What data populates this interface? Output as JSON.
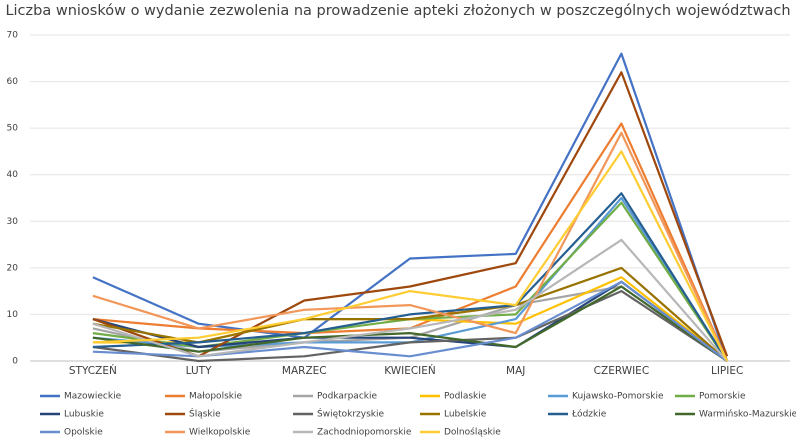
{
  "chart_data": {
    "type": "line",
    "title": "Liczba wniosków o wydanie zezwolenia na prowadzenie apteki złożonych w poszczególnych województwach",
    "categories": [
      "STYCZEŃ",
      "LUTY",
      "MARZEC",
      "KWIECIEŃ",
      "MAJ",
      "CZERWIEC",
      "LIPIEC"
    ],
    "ylim": [
      0,
      70
    ],
    "yticks": [
      0,
      10,
      20,
      30,
      40,
      50,
      60,
      70
    ],
    "grid": true,
    "series": [
      {
        "name": "Mazowieckie",
        "color": "#4472c4",
        "values": [
          18,
          8,
          5,
          22,
          23,
          66,
          0
        ]
      },
      {
        "name": "Małopolskie",
        "color": "#ed7d31",
        "values": [
          9,
          7,
          6,
          7,
          16,
          51,
          0
        ]
      },
      {
        "name": "Podkarpackie",
        "color": "#a5a5a5",
        "values": [
          7,
          2,
          4,
          5,
          12,
          16,
          0
        ]
      },
      {
        "name": "Podlaskie",
        "color": "#ffc000",
        "values": [
          4,
          4,
          9,
          9,
          8,
          18,
          0
        ]
      },
      {
        "name": "Kujawsko-Pomorskie",
        "color": "#5b9bd5",
        "values": [
          5,
          3,
          4,
          4,
          9,
          35,
          0
        ]
      },
      {
        "name": "Pomorskie",
        "color": "#70ad47",
        "values": [
          6,
          3,
          6,
          9,
          10,
          34,
          0
        ]
      },
      {
        "name": "Lubuskie",
        "color": "#264478",
        "values": [
          9,
          3,
          5,
          5,
          3,
          17,
          0
        ]
      },
      {
        "name": "Śląskie",
        "color": "#9e480e",
        "values": [
          9,
          1,
          13,
          16,
          21,
          62,
          1
        ]
      },
      {
        "name": "Świętokrzyskie",
        "color": "#636363",
        "values": [
          3,
          0,
          1,
          4,
          5,
          15,
          0
        ]
      },
      {
        "name": "Lubelskie",
        "color": "#997300",
        "values": [
          8,
          4,
          9,
          9,
          12,
          20,
          0
        ]
      },
      {
        "name": "Łódzkie",
        "color": "#255e91",
        "values": [
          3,
          4,
          6,
          10,
          12,
          36,
          0
        ]
      },
      {
        "name": "Warmińsko-Mazurskie",
        "color": "#43682b",
        "values": [
          5,
          2,
          5,
          6,
          3,
          16,
          0
        ]
      },
      {
        "name": "Opolskie",
        "color": "#698ed0",
        "values": [
          2,
          1,
          3,
          1,
          5,
          17,
          0
        ]
      },
      {
        "name": "Wielkopolskie",
        "color": "#f1975a",
        "values": [
          14,
          7,
          11,
          12,
          6,
          49,
          0
        ]
      },
      {
        "name": "Zachodniopomorskie",
        "color": "#b7b7b7",
        "values": [
          8,
          1,
          4,
          7,
          11,
          26,
          0
        ]
      },
      {
        "name": "Dolnośląskie",
        "color": "#ffcd33",
        "values": [
          4,
          5,
          9,
          15,
          12,
          45,
          0
        ]
      }
    ]
  }
}
